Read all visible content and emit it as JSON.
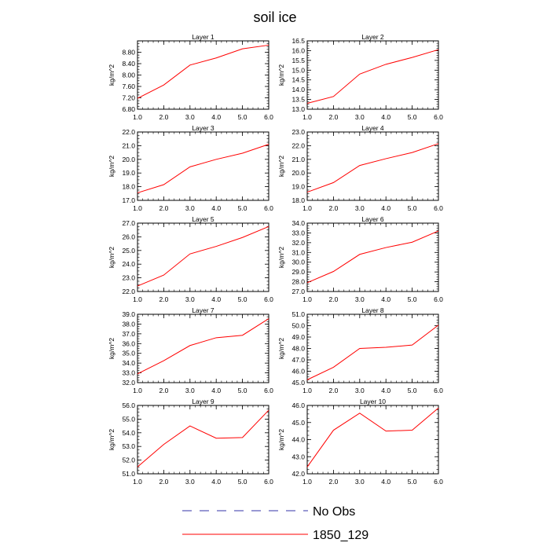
{
  "figure": {
    "title": "soil ice",
    "legend": [
      {
        "label": "No Obs",
        "color": "#3333aa",
        "style": "dashed"
      },
      {
        "label": "1850_129",
        "color": "#ff0000",
        "style": "solid"
      }
    ]
  },
  "chart_data": [
    {
      "type": "line",
      "title": "Layer 1",
      "ylabel": "kg/m^2",
      "xlabel": "",
      "xlim": [
        1,
        6
      ],
      "ylim": [
        6.8,
        9.2
      ],
      "yticks": [
        "6.80",
        "7.20",
        "7.60",
        "8.00",
        "8.40",
        "8.80"
      ],
      "xticks": [
        "1.0",
        "2.0",
        "3.0",
        "4.0",
        "5.0",
        "6.0"
      ],
      "series": [
        {
          "name": "1850_129",
          "color": "#ff0000",
          "x": [
            1,
            2,
            3,
            4,
            5,
            6
          ],
          "y": [
            7.18,
            7.65,
            8.35,
            8.6,
            8.92,
            9.05
          ]
        }
      ]
    },
    {
      "type": "line",
      "title": "Layer 2",
      "ylabel": "kg/m^2",
      "xlabel": "",
      "xlim": [
        1,
        6
      ],
      "ylim": [
        13.0,
        16.5
      ],
      "yticks": [
        "13.0",
        "13.5",
        "14.0",
        "14.5",
        "15.0",
        "15.5",
        "16.0",
        "16.5"
      ],
      "xticks": [
        "1.0",
        "2.0",
        "3.0",
        "4.0",
        "5.0",
        "6.0"
      ],
      "series": [
        {
          "name": "1850_129",
          "color": "#ff0000",
          "x": [
            1,
            2,
            3,
            4,
            5,
            6
          ],
          "y": [
            13.3,
            13.65,
            14.8,
            15.3,
            15.65,
            16.05
          ]
        }
      ]
    },
    {
      "type": "line",
      "title": "Layer 3",
      "ylabel": "kg/m^2",
      "xlabel": "",
      "xlim": [
        1,
        6
      ],
      "ylim": [
        17.0,
        22.0
      ],
      "yticks": [
        "17.0",
        "18.0",
        "19.0",
        "20.0",
        "21.0",
        "22.0"
      ],
      "xticks": [
        "1.0",
        "2.0",
        "3.0",
        "4.0",
        "5.0",
        "6.0"
      ],
      "series": [
        {
          "name": "1850_129",
          "color": "#ff0000",
          "x": [
            1,
            2,
            3,
            4,
            5,
            6
          ],
          "y": [
            17.55,
            18.15,
            19.45,
            20.0,
            20.45,
            21.1
          ]
        }
      ]
    },
    {
      "type": "line",
      "title": "Layer 4",
      "ylabel": "kg/m^2",
      "xlabel": "",
      "xlim": [
        1,
        6
      ],
      "ylim": [
        18.0,
        23.0
      ],
      "yticks": [
        "18.0",
        "19.0",
        "20.0",
        "21.0",
        "22.0",
        "23.0"
      ],
      "xticks": [
        "1.0",
        "2.0",
        "3.0",
        "4.0",
        "5.0",
        "6.0"
      ],
      "series": [
        {
          "name": "1850_129",
          "color": "#ff0000",
          "x": [
            1,
            2,
            3,
            4,
            5,
            6
          ],
          "y": [
            18.6,
            19.3,
            20.55,
            21.05,
            21.5,
            22.15
          ]
        }
      ]
    },
    {
      "type": "line",
      "title": "Layer 5",
      "ylabel": "kg/m^2",
      "xlabel": "",
      "xlim": [
        1,
        6
      ],
      "ylim": [
        22.0,
        27.0
      ],
      "yticks": [
        "22.0",
        "23.0",
        "24.0",
        "25.0",
        "26.0",
        "27.0"
      ],
      "xticks": [
        "1.0",
        "2.0",
        "3.0",
        "4.0",
        "5.0",
        "6.0"
      ],
      "series": [
        {
          "name": "1850_129",
          "color": "#ff0000",
          "x": [
            1,
            2,
            3,
            4,
            5,
            6
          ],
          "y": [
            22.4,
            23.2,
            24.75,
            25.3,
            25.95,
            26.75
          ]
        }
      ]
    },
    {
      "type": "line",
      "title": "Layer 6",
      "ylabel": "kg/m^2",
      "xlabel": "",
      "xlim": [
        1,
        6
      ],
      "ylim": [
        27.0,
        34.0
      ],
      "yticks": [
        "27.0",
        "28.0",
        "29.0",
        "30.0",
        "31.0",
        "32.0",
        "33.0",
        "34.0"
      ],
      "xticks": [
        "1.0",
        "2.0",
        "3.0",
        "4.0",
        "5.0",
        "6.0"
      ],
      "series": [
        {
          "name": "1850_129",
          "color": "#ff0000",
          "x": [
            1,
            2,
            3,
            4,
            5,
            6
          ],
          "y": [
            27.9,
            29.05,
            30.8,
            31.5,
            32.05,
            33.2
          ]
        }
      ]
    },
    {
      "type": "line",
      "title": "Layer 7",
      "ylabel": "kg/m^2",
      "xlabel": "",
      "xlim": [
        1,
        6
      ],
      "ylim": [
        32.0,
        39.0
      ],
      "yticks": [
        "32.0",
        "33.0",
        "34.0",
        "35.0",
        "36.0",
        "37.0",
        "38.0",
        "39.0"
      ],
      "xticks": [
        "1.0",
        "2.0",
        "3.0",
        "4.0",
        "5.0",
        "6.0"
      ],
      "series": [
        {
          "name": "1850_129",
          "color": "#ff0000",
          "x": [
            1,
            2,
            3,
            4,
            5,
            6
          ],
          "y": [
            32.9,
            34.25,
            35.8,
            36.6,
            36.85,
            38.55
          ]
        }
      ]
    },
    {
      "type": "line",
      "title": "Layer 8",
      "ylabel": "kg/m^2",
      "xlabel": "",
      "xlim": [
        1,
        6
      ],
      "ylim": [
        45.0,
        51.0
      ],
      "yticks": [
        "45.0",
        "46.0",
        "47.0",
        "48.0",
        "49.0",
        "50.0",
        "51.0"
      ],
      "xticks": [
        "1.0",
        "2.0",
        "3.0",
        "4.0",
        "5.0",
        "6.0"
      ],
      "series": [
        {
          "name": "1850_129",
          "color": "#ff0000",
          "x": [
            1,
            2,
            3,
            4,
            5,
            6
          ],
          "y": [
            45.25,
            46.35,
            48.0,
            48.1,
            48.3,
            50.05
          ]
        }
      ]
    },
    {
      "type": "line",
      "title": "Layer 9",
      "ylabel": "kg/m^2",
      "xlabel": "",
      "xlim": [
        1,
        6
      ],
      "ylim": [
        51.0,
        56.0
      ],
      "yticks": [
        "51.0",
        "52.0",
        "53.0",
        "54.0",
        "55.0",
        "56.0"
      ],
      "xticks": [
        "1.0",
        "2.0",
        "3.0",
        "4.0",
        "5.0",
        "6.0"
      ],
      "series": [
        {
          "name": "1850_129",
          "color": "#ff0000",
          "x": [
            1,
            2,
            3,
            4,
            5,
            6
          ],
          "y": [
            51.5,
            53.15,
            54.5,
            53.6,
            53.65,
            55.65
          ]
        }
      ]
    },
    {
      "type": "line",
      "title": "Layer 10",
      "ylabel": "kg/m^2",
      "xlabel": "",
      "xlim": [
        1,
        6
      ],
      "ylim": [
        42.0,
        46.0
      ],
      "yticks": [
        "42.0",
        "43.0",
        "44.0",
        "45.0",
        "46.0"
      ],
      "xticks": [
        "1.0",
        "2.0",
        "3.0",
        "4.0",
        "5.0",
        "6.0"
      ],
      "series": [
        {
          "name": "1850_129",
          "color": "#ff0000",
          "x": [
            1,
            2,
            3,
            4,
            5,
            6
          ],
          "y": [
            42.4,
            44.55,
            45.55,
            44.5,
            44.55,
            45.85
          ]
        }
      ]
    }
  ]
}
